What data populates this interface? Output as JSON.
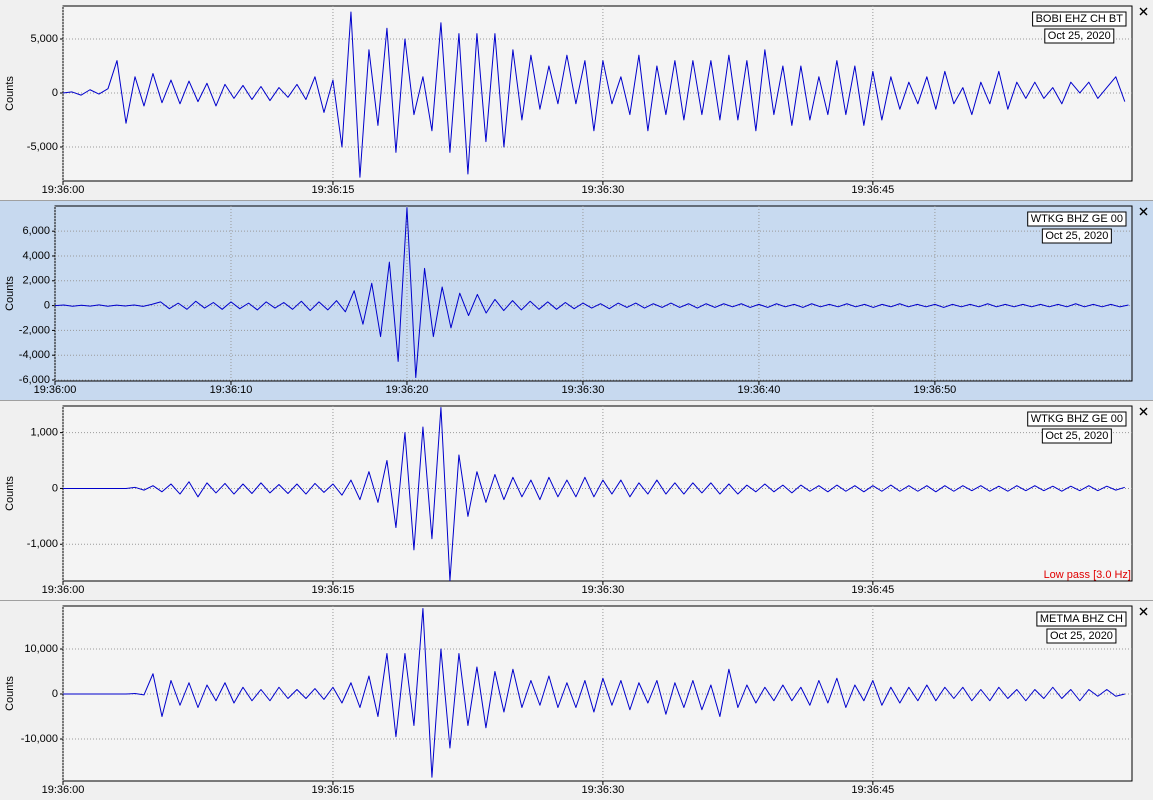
{
  "chart_data": [
    {
      "type": "line",
      "station": "BOBI EHZ CH BT",
      "date": "Oct 25, 2020",
      "ylabel": "Counts",
      "color": "#0000cc",
      "xlim": [
        0,
        59.4
      ],
      "ylim": [
        -8150,
        8055
      ],
      "xticks": [
        {
          "value": 0,
          "label": "19:36:00"
        },
        {
          "value": 15,
          "label": "19:36:15"
        },
        {
          "value": 30,
          "label": "19:36:30"
        },
        {
          "value": 45,
          "label": "19:36:45"
        }
      ],
      "yticks": [
        {
          "value": -5000,
          "label": "-5,000"
        },
        0,
        {
          "value": 5000,
          "label": "5,000"
        }
      ],
      "grid": true,
      "x": [
        0,
        0.5,
        1,
        1.5,
        2,
        2.5,
        3,
        3.5,
        4,
        4.5,
        5,
        5.5,
        6,
        6.5,
        7,
        7.5,
        8,
        8.5,
        9,
        9.5,
        10,
        10.5,
        11,
        11.5,
        12,
        12.5,
        13,
        13.5,
        14,
        14.5,
        15,
        15.5,
        16,
        16.5,
        17,
        17.5,
        18,
        18.5,
        19,
        19.5,
        20,
        20.5,
        21,
        21.5,
        22,
        22.5,
        23,
        23.5,
        24,
        24.5,
        25,
        25.5,
        26,
        26.5,
        27,
        27.5,
        28,
        28.5,
        29,
        29.5,
        30,
        30.5,
        31,
        31.5,
        32,
        32.5,
        33,
        33.5,
        34,
        34.5,
        35,
        35.5,
        36,
        36.5,
        37,
        37.5,
        38,
        38.5,
        39,
        39.5,
        40,
        40.5,
        41,
        41.5,
        42,
        42.5,
        43,
        43.5,
        44,
        44.5,
        45,
        45.5,
        46,
        46.5,
        47,
        47.5,
        48,
        48.5,
        49,
        49.5,
        50,
        50.5,
        51,
        51.5,
        52,
        52.5,
        53,
        53.5,
        54,
        54.5,
        55,
        55.5,
        56,
        56.5,
        57,
        57.5,
        58,
        58.5,
        59
      ],
      "values": [
        0,
        100,
        -200,
        300,
        -100,
        400,
        3000,
        -2800,
        1500,
        -1200,
        1800,
        -900,
        1200,
        -1000,
        1100,
        -800,
        900,
        -1200,
        800,
        -500,
        700,
        -600,
        600,
        -700,
        500,
        -400,
        800,
        -600,
        1500,
        -1800,
        1200,
        -5000,
        7500,
        -7800,
        4000,
        -3000,
        6000,
        -5500,
        5000,
        -2000,
        1500,
        -3500,
        6500,
        -5500,
        5500,
        -7500,
        5500,
        -4500,
        5500,
        -5000,
        4000,
        -2500,
        3500,
        -1500,
        2500,
        -1000,
        3500,
        -1000,
        3000,
        -3500,
        3000,
        -1000,
        1500,
        -2000,
        3500,
        -3500,
        2500,
        -2000,
        3000,
        -2500,
        3000,
        -2000,
        3000,
        -2500,
        3500,
        -2500,
        3000,
        -3500,
        4000,
        -2000,
        2500,
        -3000,
        2500,
        -2500,
        1500,
        -2000,
        3000,
        -2000,
        2500,
        -3000,
        2000,
        -2500,
        1500,
        -1500,
        1000,
        -1000,
        1500,
        -1500,
        2000,
        -1000,
        500,
        -2000,
        1000,
        -1000,
        2000,
        -1500,
        1000,
        -500,
        1000,
        -500,
        500,
        -1000,
        1000,
        0,
        1000,
        -500,
        500,
        1500,
        -800
      ]
    },
    {
      "type": "line",
      "station": "WTKG BHZ GE 00",
      "date": "Oct 25, 2020",
      "ylabel": "Counts",
      "color": "#0000cc",
      "selected": true,
      "xlim": [
        0,
        61.2
      ],
      "ylim": [
        -6080,
        8030
      ],
      "xticks": [
        {
          "value": 0,
          "label": "19:36:00"
        },
        {
          "value": 10,
          "label": "19:36:10"
        },
        {
          "value": 20,
          "label": "19:36:20"
        },
        {
          "value": 30,
          "label": "19:36:30"
        },
        {
          "value": 40,
          "label": "19:36:40"
        },
        {
          "value": 50,
          "label": "19:36:50"
        }
      ],
      "yticks": [
        {
          "value": -6000,
          "label": "-6,000"
        },
        {
          "value": -4000,
          "label": "-4,000"
        },
        {
          "value": -2000,
          "label": "-2,000"
        },
        0,
        {
          "value": 2000,
          "label": "2,000"
        },
        {
          "value": 4000,
          "label": "4,000"
        },
        {
          "value": 6000,
          "label": "6,000"
        }
      ],
      "grid": true,
      "x": [
        0,
        0.5,
        1,
        1.5,
        2,
        2.5,
        3,
        3.5,
        4,
        4.5,
        5,
        5.5,
        6,
        6.5,
        7,
        7.5,
        8,
        8.5,
        9,
        9.5,
        10,
        10.5,
        11,
        11.5,
        12,
        12.5,
        13,
        13.5,
        14,
        14.5,
        15,
        15.5,
        16,
        16.5,
        17,
        17.5,
        18,
        18.5,
        19,
        19.5,
        20,
        20.5,
        21,
        21.5,
        22,
        22.5,
        23,
        23.5,
        24,
        24.5,
        25,
        25.5,
        26,
        26.5,
        27,
        27.5,
        28,
        28.5,
        29,
        29.5,
        30,
        30.5,
        31,
        31.5,
        32,
        32.5,
        33,
        33.5,
        34,
        34.5,
        35,
        35.5,
        36,
        36.5,
        37,
        37.5,
        38,
        38.5,
        39,
        39.5,
        40,
        40.5,
        41,
        41.5,
        42,
        42.5,
        43,
        43.5,
        44,
        44.5,
        45,
        45.5,
        46,
        46.5,
        47,
        47.5,
        48,
        48.5,
        49,
        49.5,
        50,
        50.5,
        51,
        51.5,
        52,
        52.5,
        53,
        53.5,
        54,
        54.5,
        55,
        55.5,
        56,
        56.5,
        57,
        57.5,
        58,
        58.5,
        59,
        59.5,
        60,
        60.5,
        61
      ],
      "values": [
        0,
        50,
        -50,
        30,
        -40,
        60,
        -50,
        40,
        -30,
        50,
        -60,
        100,
        300,
        -250,
        200,
        -300,
        350,
        -200,
        250,
        -300,
        300,
        -250,
        200,
        -350,
        300,
        -200,
        250,
        -300,
        350,
        -400,
        300,
        -350,
        400,
        -500,
        1200,
        -1500,
        1800,
        -2500,
        3500,
        -4500,
        7900,
        -5800,
        3000,
        -2500,
        1500,
        -1800,
        1000,
        -800,
        900,
        -600,
        500,
        -400,
        400,
        -350,
        350,
        -300,
        300,
        -300,
        250,
        -250,
        200,
        -200,
        150,
        -250,
        200,
        -150,
        200,
        -200,
        150,
        -150,
        200,
        -150,
        150,
        -200,
        150,
        -150,
        150,
        -100,
        150,
        -150,
        100,
        -150,
        150,
        -100,
        100,
        -150,
        150,
        -100,
        100,
        -100,
        150,
        -100,
        100,
        -150,
        100,
        -100,
        150,
        -100,
        100,
        -100,
        100,
        -150,
        100,
        -100,
        100,
        -100,
        150,
        -100,
        100,
        -100,
        100,
        -100,
        100,
        -100,
        100,
        -100,
        150,
        -100,
        100,
        -100,
        100,
        -100,
        50
      ]
    },
    {
      "type": "line",
      "station": "WTKG BHZ GE 00",
      "date": "Oct 25, 2020",
      "ylabel": "Counts",
      "color": "#0000cc",
      "annotation": "Low pass [3.0 Hz]",
      "annotation_color": "#e00000",
      "xlim": [
        0,
        59.4
      ],
      "ylim": [
        -1658,
        1477
      ],
      "xticks": [
        {
          "value": 0,
          "label": "19:36:00"
        },
        {
          "value": 15,
          "label": "19:36:15"
        },
        {
          "value": 30,
          "label": "19:36:30"
        },
        {
          "value": 45,
          "label": "19:36:45"
        }
      ],
      "yticks": [
        {
          "value": -1000,
          "label": "-1,000"
        },
        0,
        {
          "value": 1000,
          "label": "1,000"
        }
      ],
      "grid": true,
      "x": [
        0,
        0.5,
        1,
        1.5,
        2,
        2.5,
        3,
        3.5,
        4,
        4.5,
        5,
        5.5,
        6,
        6.5,
        7,
        7.5,
        8,
        8.5,
        9,
        9.5,
        10,
        10.5,
        11,
        11.5,
        12,
        12.5,
        13,
        13.5,
        14,
        14.5,
        15,
        15.5,
        16,
        16.5,
        17,
        17.5,
        18,
        18.5,
        19,
        19.5,
        20,
        20.5,
        21,
        21.5,
        22,
        22.5,
        23,
        23.5,
        24,
        24.5,
        25,
        25.5,
        26,
        26.5,
        27,
        27.5,
        28,
        28.5,
        29,
        29.5,
        30,
        30.5,
        31,
        31.5,
        32,
        32.5,
        33,
        33.5,
        34,
        34.5,
        35,
        35.5,
        36,
        36.5,
        37,
        37.5,
        38,
        38.5,
        39,
        39.5,
        40,
        40.5,
        41,
        41.5,
        42,
        42.5,
        43,
        43.5,
        44,
        44.5,
        45,
        45.5,
        46,
        46.5,
        47,
        47.5,
        48,
        48.5,
        49,
        49.5,
        50,
        50.5,
        51,
        51.5,
        52,
        52.5,
        53,
        53.5,
        54,
        54.5,
        55,
        55.5,
        56,
        56.5,
        57,
        57.5,
        58,
        58.5,
        59
      ],
      "values": [
        0,
        0,
        0,
        0,
        0,
        0,
        0,
        0,
        20,
        -30,
        50,
        -60,
        80,
        -100,
        120,
        -150,
        100,
        -80,
        90,
        -100,
        80,
        -90,
        100,
        -80,
        70,
        -90,
        80,
        -100,
        90,
        -70,
        80,
        -120,
        150,
        -200,
        300,
        -250,
        500,
        -700,
        1000,
        -1100,
        1100,
        -900,
        1450,
        -1650,
        600,
        -500,
        300,
        -250,
        250,
        -200,
        200,
        -150,
        150,
        -200,
        200,
        -150,
        150,
        -150,
        200,
        -150,
        150,
        -100,
        150,
        -150,
        100,
        -100,
        150,
        -100,
        100,
        -100,
        100,
        -80,
        100,
        -100,
        80,
        -100,
        60,
        -60,
        80,
        -60,
        60,
        -80,
        60,
        -50,
        50,
        -60,
        60,
        -50,
        50,
        -60,
        50,
        -50,
        60,
        -50,
        50,
        -50,
        50,
        -60,
        50,
        -50,
        50,
        -40,
        50,
        -50,
        40,
        -50,
        50,
        -40,
        50,
        -40,
        40,
        -50,
        40,
        -40,
        50,
        -40,
        40,
        -30,
        20
      ]
    },
    {
      "type": "line",
      "station": "METMA BHZ CH",
      "date": "Oct 25, 2020",
      "ylabel": "Counts",
      "color": "#0000cc",
      "xlim": [
        0,
        59.4
      ],
      "ylim": [
        -19333,
        19556
      ],
      "xticks": [
        {
          "value": 0,
          "label": "19:36:00"
        },
        {
          "value": 15,
          "label": "19:36:15"
        },
        {
          "value": 30,
          "label": "19:36:30"
        },
        {
          "value": 45,
          "label": "19:36:45"
        }
      ],
      "yticks": [
        {
          "value": -10000,
          "label": "-10,000"
        },
        0,
        {
          "value": 10000,
          "label": "10,000"
        }
      ],
      "grid": true,
      "x": [
        0,
        0.5,
        1,
        1.5,
        2,
        2.5,
        3,
        3.5,
        4,
        4.5,
        5,
        5.5,
        6,
        6.5,
        7,
        7.5,
        8,
        8.5,
        9,
        9.5,
        10,
        10.5,
        11,
        11.5,
        12,
        12.5,
        13,
        13.5,
        14,
        14.5,
        15,
        15.5,
        16,
        16.5,
        17,
        17.5,
        18,
        18.5,
        19,
        19.5,
        20,
        20.5,
        21,
        21.5,
        22,
        22.5,
        23,
        23.5,
        24,
        24.5,
        25,
        25.5,
        26,
        26.5,
        27,
        27.5,
        28,
        28.5,
        29,
        29.5,
        30,
        30.5,
        31,
        31.5,
        32,
        32.5,
        33,
        33.5,
        34,
        34.5,
        35,
        35.5,
        36,
        36.5,
        37,
        37.5,
        38,
        38.5,
        39,
        39.5,
        40,
        40.5,
        41,
        41.5,
        42,
        42.5,
        43,
        43.5,
        44,
        44.5,
        45,
        45.5,
        46,
        46.5,
        47,
        47.5,
        48,
        48.5,
        49,
        49.5,
        50,
        50.5,
        51,
        51.5,
        52,
        52.5,
        53,
        53.5,
        54,
        54.5,
        55,
        55.5,
        56,
        56.5,
        57,
        57.5,
        58,
        58.5,
        59
      ],
      "values": [
        0,
        0,
        0,
        0,
        0,
        0,
        0,
        0,
        100,
        -200,
        4500,
        -5000,
        3000,
        -2500,
        2500,
        -3000,
        2000,
        -1500,
        2500,
        -2000,
        1500,
        -1500,
        1000,
        -1500,
        1500,
        -1000,
        1000,
        -1000,
        1200,
        -1200,
        1500,
        -2000,
        2500,
        -3000,
        4000,
        -5000,
        9000,
        -9500,
        9000,
        -7000,
        19000,
        -18500,
        10000,
        -12000,
        9000,
        -7000,
        6000,
        -7500,
        5000,
        -4000,
        5500,
        -3000,
        3000,
        -2500,
        4000,
        -3000,
        2500,
        -3000,
        3000,
        -4000,
        3500,
        -2500,
        3000,
        -3500,
        2500,
        -2000,
        3000,
        -4500,
        2500,
        -3000,
        3000,
        -3500,
        2000,
        -5000,
        5500,
        -3000,
        2000,
        -2000,
        1500,
        -1500,
        2000,
        -1500,
        1500,
        -2500,
        3000,
        -2000,
        3500,
        -3000,
        2000,
        -1500,
        3000,
        -2500,
        1500,
        -2000,
        1500,
        -1500,
        2000,
        -1500,
        1500,
        -1000,
        1500,
        -1500,
        1000,
        -1500,
        1500,
        -1000,
        1000,
        -1500,
        1000,
        -1000,
        1500,
        -1000,
        1000,
        -1500,
        1000,
        -500,
        1000,
        -500,
        0
      ]
    }
  ]
}
